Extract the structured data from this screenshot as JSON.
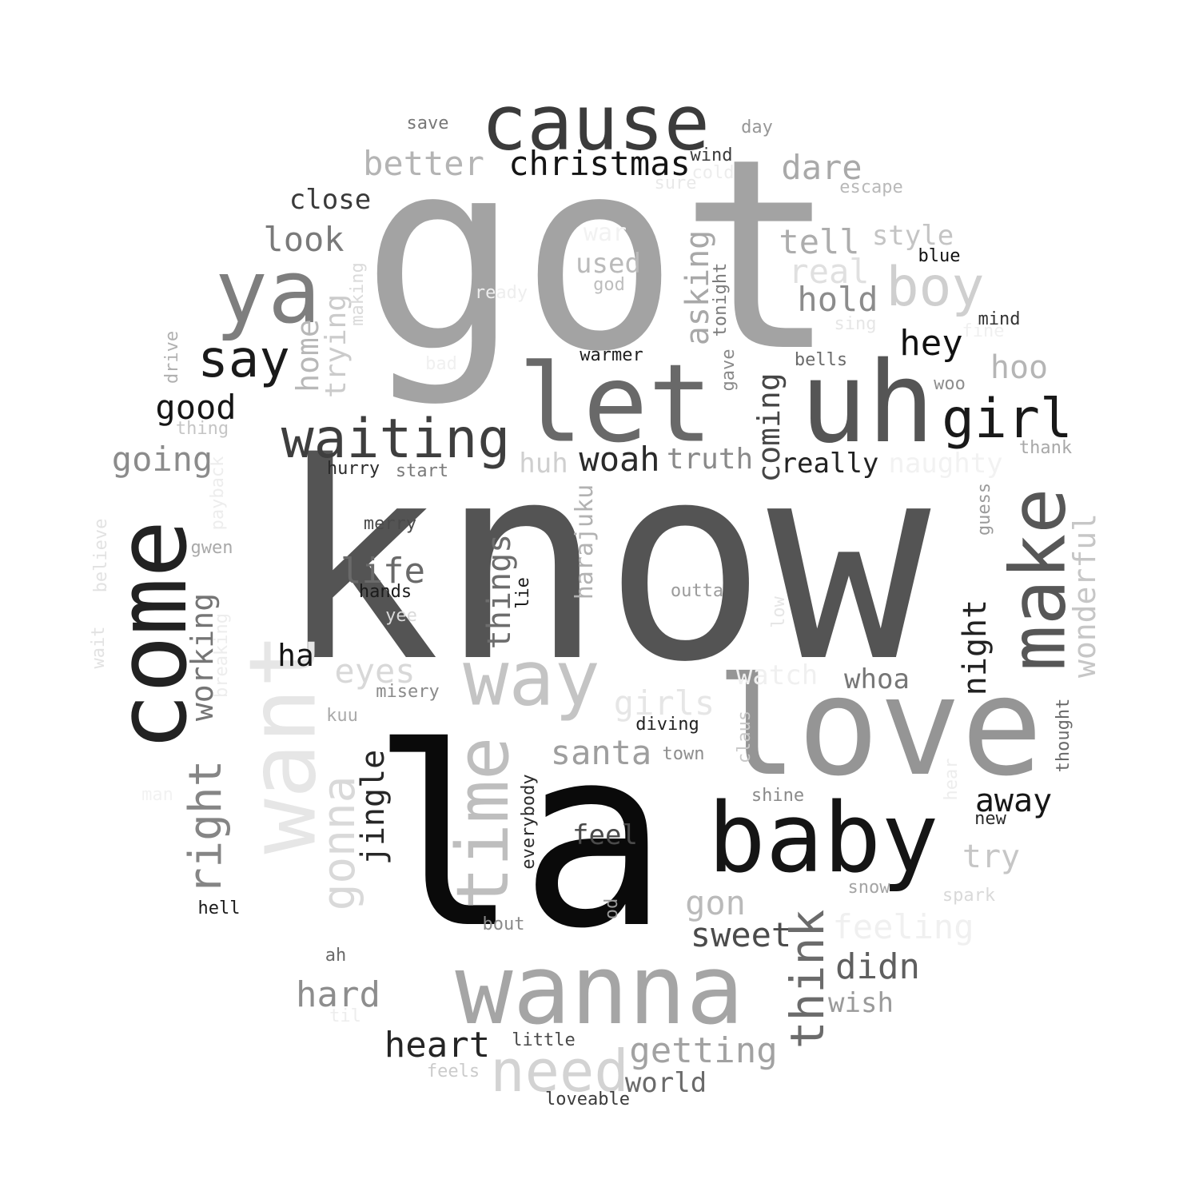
{
  "words": [
    {
      "text": "know",
      "color": "#545454"
    },
    {
      "text": "got",
      "color": "#a3a3a3"
    },
    {
      "text": "la",
      "color": "#0a0a0a"
    },
    {
      "text": "love",
      "color": "#959595"
    },
    {
      "text": "uh",
      "color": "#555555"
    },
    {
      "text": "let",
      "color": "#696969"
    },
    {
      "text": "want",
      "color": "#e6e6e6"
    },
    {
      "text": "come",
      "color": "#222222"
    },
    {
      "text": "wanna",
      "color": "#a5a5a5"
    },
    {
      "text": "baby",
      "color": "#151515"
    },
    {
      "text": "cause",
      "color": "#3b3b3b"
    },
    {
      "text": "ya",
      "color": "#7e7e7e"
    },
    {
      "text": "make",
      "color": "#575757"
    },
    {
      "text": "way",
      "color": "#c4c4c4"
    },
    {
      "text": "time",
      "color": "#bebebe"
    },
    {
      "text": "need",
      "color": "#d3d3d3"
    },
    {
      "text": "waiting",
      "color": "#3e3e3e"
    },
    {
      "text": "girl",
      "color": "#191919"
    },
    {
      "text": "boy",
      "color": "#cfcfcf"
    },
    {
      "text": "say",
      "color": "#1a1a1a"
    },
    {
      "text": "gonna",
      "color": "#d9d9d9"
    },
    {
      "text": "right",
      "color": "#858585"
    },
    {
      "text": "think",
      "color": "#6b6b6b"
    },
    {
      "text": "christmas",
      "color": "#141414"
    },
    {
      "text": "better",
      "color": "#b4b4b4"
    },
    {
      "text": "dare",
      "color": "#a9a9a9"
    },
    {
      "text": "tell",
      "color": "#adadad"
    },
    {
      "text": "real",
      "color": "#e0e0e0"
    },
    {
      "text": "hold",
      "color": "#8c8c8c"
    },
    {
      "text": "asking",
      "color": "#a8a8a8"
    },
    {
      "text": "look",
      "color": "#7a7a7a"
    },
    {
      "text": "close",
      "color": "#3a3a3a"
    },
    {
      "text": "used",
      "color": "#bababa"
    },
    {
      "text": "style",
      "color": "#c4c4c4"
    },
    {
      "text": "hey",
      "color": "#111111"
    },
    {
      "text": "hoo",
      "color": "#b5b5b5"
    },
    {
      "text": "good",
      "color": "#151515"
    },
    {
      "text": "going",
      "color": "#8b8b8b"
    },
    {
      "text": "woah",
      "color": "#2a2a2a"
    },
    {
      "text": "truth",
      "color": "#8a8a8a"
    },
    {
      "text": "really",
      "color": "#222222"
    },
    {
      "text": "coming",
      "color": "#464646"
    },
    {
      "text": "home",
      "color": "#b8b8b8"
    },
    {
      "text": "trying",
      "color": "#cbcbcb"
    },
    {
      "text": "heart",
      "color": "#252525"
    },
    {
      "text": "getting",
      "color": "#a2a2a2"
    },
    {
      "text": "world",
      "color": "#6a6a6a"
    },
    {
      "text": "hard",
      "color": "#8d8d8d"
    },
    {
      "text": "didn",
      "color": "#5f5f5f"
    },
    {
      "text": "wish",
      "color": "#9a9a9a"
    },
    {
      "text": "sweet",
      "color": "#4b4b4b"
    },
    {
      "text": "gon",
      "color": "#bababa"
    },
    {
      "text": "santa",
      "color": "#9e9e9e"
    },
    {
      "text": "eyes",
      "color": "#d8d8d8"
    },
    {
      "text": "girls",
      "color": "#e6e6e6"
    },
    {
      "text": "feeling",
      "color": "#f0f0f0"
    },
    {
      "text": "jingle",
      "color": "#272727"
    },
    {
      "text": "things",
      "color": "#6d6d6d"
    },
    {
      "text": "life",
      "color": "#6a6a6a"
    },
    {
      "text": "working",
      "color": "#757575"
    },
    {
      "text": "night",
      "color": "#222222"
    },
    {
      "text": "wonderful",
      "color": "#c6c6c6"
    },
    {
      "text": "away",
      "color": "#161616"
    },
    {
      "text": "try",
      "color": "#c6c6c6"
    },
    {
      "text": "feel",
      "color": "#4a4a4a"
    },
    {
      "text": "ha",
      "color": "#151515"
    },
    {
      "text": "harajuku",
      "color": "#b2b2b2"
    },
    {
      "text": "huh",
      "color": "#cfcfcf"
    },
    {
      "text": "naughty",
      "color": "#f2f2f2"
    },
    {
      "text": "whoa",
      "color": "#767676"
    },
    {
      "text": "watch",
      "color": "#f0f0f0"
    },
    {
      "text": "save",
      "color": "#777777"
    },
    {
      "text": "day",
      "color": "#979797"
    },
    {
      "text": "wind",
      "color": "#3a3a3a"
    },
    {
      "text": "cold",
      "color": "#ededed"
    },
    {
      "text": "sure",
      "color": "#e9e9e9"
    },
    {
      "text": "escape",
      "color": "#b9b9b9"
    },
    {
      "text": "war",
      "color": "#f2f2f2"
    },
    {
      "text": "god",
      "color": "#bdbdbd"
    },
    {
      "text": "ready",
      "color": "#eeeeee"
    },
    {
      "text": "making",
      "color": "#dadada"
    },
    {
      "text": "tonight",
      "color": "#7b7b7b"
    },
    {
      "text": "blue",
      "color": "#111111"
    },
    {
      "text": "sing",
      "color": "#e6e6e6"
    },
    {
      "text": "mind",
      "color": "#333333"
    },
    {
      "text": "fine",
      "color": "#f0f0f0"
    },
    {
      "text": "bad",
      "color": "#f0f0f0"
    },
    {
      "text": "warmer",
      "color": "#1e1e1e"
    },
    {
      "text": "gave",
      "color": "#8a8a8a"
    },
    {
      "text": "bells",
      "color": "#6a6a6a"
    },
    {
      "text": "woo",
      "color": "#8d8d8d"
    },
    {
      "text": "drive",
      "color": "#b0b0b0"
    },
    {
      "text": "thing",
      "color": "#c5c5c5"
    },
    {
      "text": "hurry",
      "color": "#2b2b2b"
    },
    {
      "text": "start",
      "color": "#7a7a7a"
    },
    {
      "text": "thank",
      "color": "#a8a8a8"
    },
    {
      "text": "payback",
      "color": "#ededed"
    },
    {
      "text": "merry",
      "color": "#4a4a4a"
    },
    {
      "text": "gwen",
      "color": "#a9a9a9"
    },
    {
      "text": "guess",
      "color": "#9a9a9a"
    },
    {
      "text": "believe",
      "color": "#e2e2e2"
    },
    {
      "text": "wait",
      "color": "#e2e2e2"
    },
    {
      "text": "hands",
      "color": "#1b1b1b"
    },
    {
      "text": "lie",
      "color": "#1b1b1b"
    },
    {
      "text": "outta",
      "color": "#9b9b9b"
    },
    {
      "text": "low",
      "color": "#e6e6e6"
    },
    {
      "text": "yee",
      "color": "#dadada"
    },
    {
      "text": "breaking",
      "color": "#ededed"
    },
    {
      "text": "misery",
      "color": "#8a8a8a"
    },
    {
      "text": "kuu",
      "color": "#a9a9a9"
    },
    {
      "text": "diving",
      "color": "#222222"
    },
    {
      "text": "town",
      "color": "#8d8d8d"
    },
    {
      "text": "claus",
      "color": "#c9c9c9"
    },
    {
      "text": "thought",
      "color": "#6a6a6a"
    },
    {
      "text": "man",
      "color": "#f2f2f2"
    },
    {
      "text": "everybody",
      "color": "#2c2c2c"
    },
    {
      "text": "shine",
      "color": "#8a8a8a"
    },
    {
      "text": "hear",
      "color": "#ededed"
    },
    {
      "text": "new",
      "color": "#2a2a2a"
    },
    {
      "text": "snow",
      "color": "#a4a4a4"
    },
    {
      "text": "spark",
      "color": "#d9d9d9"
    },
    {
      "text": "hell",
      "color": "#1b1b1b"
    },
    {
      "text": "bout",
      "color": "#8a8a8a"
    },
    {
      "text": "od",
      "color": "#9a9a9a"
    },
    {
      "text": "ah",
      "color": "#6a6a6a"
    },
    {
      "text": "til",
      "color": "#ededed"
    },
    {
      "text": "little",
      "color": "#4a4a4a"
    },
    {
      "text": "feels",
      "color": "#cbcbcb"
    },
    {
      "text": "loveable",
      "color": "#3b3b3b"
    }
  ]
}
